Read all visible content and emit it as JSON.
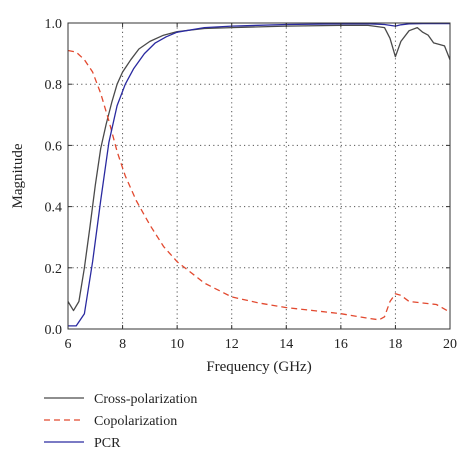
{
  "chart_data": {
    "type": "line",
    "xlabel": "Frequency (GHz)",
    "ylabel": "Magnitude",
    "xlim": [
      6,
      20
    ],
    "ylim": [
      0,
      1.0
    ],
    "xticks": [
      6,
      8,
      10,
      12,
      14,
      16,
      18,
      20
    ],
    "yticks": [
      0.0,
      0.2,
      0.4,
      0.6,
      0.8,
      1.0
    ],
    "ytick_labels": [
      "0.0",
      "0.2",
      "0.4",
      "0.6",
      "0.8",
      "1.0"
    ],
    "grid": "dotted",
    "legend_position": "below",
    "series": [
      {
        "name": "Cross-polarization",
        "color": "#4a4a4a",
        "dash": "solid",
        "points": [
          [
            6.0,
            0.09
          ],
          [
            6.2,
            0.06
          ],
          [
            6.4,
            0.09
          ],
          [
            6.6,
            0.2
          ],
          [
            6.8,
            0.33
          ],
          [
            7.0,
            0.47
          ],
          [
            7.2,
            0.59
          ],
          [
            7.4,
            0.67
          ],
          [
            7.6,
            0.74
          ],
          [
            7.8,
            0.8
          ],
          [
            8.0,
            0.84
          ],
          [
            8.3,
            0.88
          ],
          [
            8.6,
            0.915
          ],
          [
            9.0,
            0.94
          ],
          [
            9.5,
            0.96
          ],
          [
            10.0,
            0.972
          ],
          [
            11.0,
            0.982
          ],
          [
            12.0,
            0.985
          ],
          [
            14.0,
            0.99
          ],
          [
            16.0,
            0.992
          ],
          [
            17.0,
            0.992
          ],
          [
            17.6,
            0.985
          ],
          [
            17.8,
            0.95
          ],
          [
            18.0,
            0.89
          ],
          [
            18.2,
            0.94
          ],
          [
            18.5,
            0.975
          ],
          [
            18.8,
            0.985
          ],
          [
            19.0,
            0.97
          ],
          [
            19.2,
            0.96
          ],
          [
            19.4,
            0.935
          ],
          [
            19.6,
            0.93
          ],
          [
            19.8,
            0.925
          ],
          [
            20.0,
            0.88
          ]
        ]
      },
      {
        "name": "Copolarization",
        "color": "#e2492f",
        "dash": "dashed",
        "points": [
          [
            6.0,
            0.91
          ],
          [
            6.3,
            0.905
          ],
          [
            6.6,
            0.88
          ],
          [
            6.9,
            0.84
          ],
          [
            7.2,
            0.77
          ],
          [
            7.5,
            0.68
          ],
          [
            7.8,
            0.58
          ],
          [
            8.1,
            0.5
          ],
          [
            8.5,
            0.42
          ],
          [
            9.0,
            0.34
          ],
          [
            9.5,
            0.27
          ],
          [
            10.0,
            0.22
          ],
          [
            11.0,
            0.15
          ],
          [
            12.0,
            0.105
          ],
          [
            13.0,
            0.085
          ],
          [
            14.0,
            0.07
          ],
          [
            15.0,
            0.06
          ],
          [
            16.0,
            0.05
          ],
          [
            17.0,
            0.035
          ],
          [
            17.4,
            0.03
          ],
          [
            17.6,
            0.04
          ],
          [
            17.8,
            0.09
          ],
          [
            18.0,
            0.115
          ],
          [
            18.2,
            0.11
          ],
          [
            18.5,
            0.09
          ],
          [
            19.0,
            0.085
          ],
          [
            19.5,
            0.08
          ],
          [
            20.0,
            0.055
          ]
        ]
      },
      {
        "name": "PCR",
        "color": "#2a2aa0",
        "dash": "solid",
        "points": [
          [
            6.0,
            0.01
          ],
          [
            6.3,
            0.01
          ],
          [
            6.6,
            0.05
          ],
          [
            6.9,
            0.22
          ],
          [
            7.2,
            0.42
          ],
          [
            7.5,
            0.61
          ],
          [
            7.8,
            0.73
          ],
          [
            8.1,
            0.8
          ],
          [
            8.4,
            0.85
          ],
          [
            8.8,
            0.9
          ],
          [
            9.2,
            0.935
          ],
          [
            9.6,
            0.955
          ],
          [
            10.0,
            0.97
          ],
          [
            11.0,
            0.985
          ],
          [
            12.0,
            0.99
          ],
          [
            14.0,
            0.995
          ],
          [
            16.0,
            0.997
          ],
          [
            17.0,
            0.997
          ],
          [
            17.6,
            0.995
          ],
          [
            18.0,
            0.99
          ],
          [
            18.2,
            0.994
          ],
          [
            18.5,
            0.997
          ],
          [
            19.0,
            0.998
          ],
          [
            20.0,
            0.998
          ]
        ]
      }
    ]
  }
}
